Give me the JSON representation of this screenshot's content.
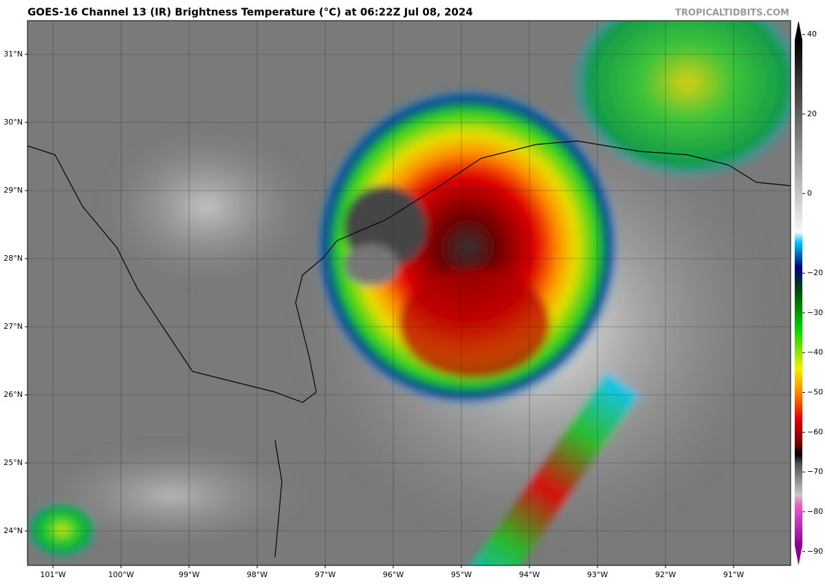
{
  "header": {
    "title": "GOES-16 Channel 13 (IR) Brightness Temperature (°C) at 06:22Z Jul 08, 2024",
    "credit": "TROPICALTIDBITS.COM"
  },
  "map": {
    "lonlim": [
      -101.374,
      -90.162
    ],
    "latlim": [
      23.495,
      31.495
    ],
    "lonticks": [
      {
        "value": -101,
        "label": "101°W"
      },
      {
        "value": -100,
        "label": "100°W"
      },
      {
        "value": -99,
        "label": "99°W"
      },
      {
        "value": -98,
        "label": "98°W"
      },
      {
        "value": -97,
        "label": "97°W"
      },
      {
        "value": -96,
        "label": "96°W"
      },
      {
        "value": -95,
        "label": "95°W"
      },
      {
        "value": -94,
        "label": "94°W"
      },
      {
        "value": -93,
        "label": "93°W"
      },
      {
        "value": -92,
        "label": "92°W"
      },
      {
        "value": -91,
        "label": "91°W"
      }
    ],
    "latticks": [
      {
        "value": 31,
        "label": "31°N"
      },
      {
        "value": 30,
        "label": "30°N"
      },
      {
        "value": 29,
        "label": "29°N"
      },
      {
        "value": 28,
        "label": "28°N"
      },
      {
        "value": 27,
        "label": "27°N"
      },
      {
        "value": 26,
        "label": "26°N"
      },
      {
        "value": 25,
        "label": "25°N"
      },
      {
        "value": 24,
        "label": "24°N"
      }
    ]
  },
  "colorbar": {
    "lim": [
      -93.5,
      43.5
    ],
    "ticks": [
      40,
      20,
      0,
      {
        "value": -20,
        "label": "−20"
      },
      {
        "value": -30,
        "label": "−30"
      },
      {
        "value": -40,
        "label": "−40"
      },
      {
        "value": -50,
        "label": "−50"
      },
      {
        "value": -60,
        "label": "−60"
      },
      {
        "value": -70,
        "label": "−70"
      },
      {
        "value": -80,
        "label": "−80"
      },
      {
        "value": -90,
        "label": "−90"
      }
    ]
  }
}
